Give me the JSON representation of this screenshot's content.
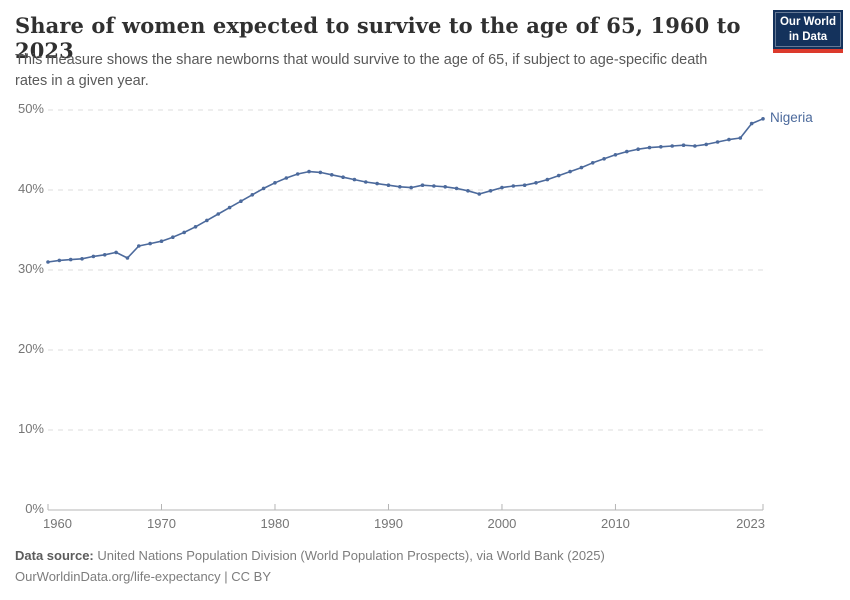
{
  "header": {
    "title": "Share of women expected to survive to the age of 65, 1960 to 2023",
    "subtitle": "This measure shows the share newborns that would survive to the age of 65, if subject to age-specific death rates in a given year.",
    "logo": {
      "line1": "Our World",
      "line2": "in Data"
    }
  },
  "colors": {
    "line": "#4C6A9C",
    "entity_label": "#4C6A9C",
    "logo_bg": "#14325C",
    "logo_red": "#DC3A2C",
    "gridline": "#dcdcdc",
    "axis": "#b5b5b5",
    "tick_text": "#767676"
  },
  "chart_data": {
    "type": "line",
    "title": "Share of women expected to survive to the age of 65, 1960 to 2023",
    "xlabel": "",
    "ylabel": "",
    "entity_label": "Nigeria",
    "ylim": [
      0,
      50
    ],
    "yticks": [
      0,
      10,
      20,
      30,
      40,
      50
    ],
    "ytick_suffix": "%",
    "xticks": [
      1960,
      1970,
      1980,
      1990,
      2000,
      2010,
      2023
    ],
    "grid": "horizontal-dashed",
    "legend_position": "end-of-line",
    "x": [
      1960,
      1961,
      1962,
      1963,
      1964,
      1965,
      1966,
      1967,
      1968,
      1969,
      1970,
      1971,
      1972,
      1973,
      1974,
      1975,
      1976,
      1977,
      1978,
      1979,
      1980,
      1981,
      1982,
      1983,
      1984,
      1985,
      1986,
      1987,
      1988,
      1989,
      1990,
      1991,
      1992,
      1993,
      1994,
      1995,
      1996,
      1997,
      1998,
      1999,
      2000,
      2001,
      2002,
      2003,
      2004,
      2005,
      2006,
      2007,
      2008,
      2009,
      2010,
      2011,
      2012,
      2013,
      2014,
      2015,
      2016,
      2017,
      2018,
      2019,
      2020,
      2021,
      2022,
      2023
    ],
    "series": [
      {
        "name": "Nigeria",
        "color": "#4C6A9C",
        "values": [
          31.0,
          31.2,
          31.3,
          31.4,
          31.7,
          31.9,
          32.2,
          31.5,
          33.0,
          33.3,
          33.6,
          34.1,
          34.7,
          35.4,
          36.2,
          37.0,
          37.8,
          38.6,
          39.4,
          40.2,
          40.9,
          41.5,
          42.0,
          42.3,
          42.2,
          41.9,
          41.6,
          41.3,
          41.0,
          40.8,
          40.6,
          40.4,
          40.3,
          40.6,
          40.5,
          40.4,
          40.2,
          39.9,
          39.5,
          39.9,
          40.3,
          40.5,
          40.6,
          40.9,
          41.3,
          41.8,
          42.3,
          42.8,
          43.4,
          43.9,
          44.4,
          44.8,
          45.1,
          45.3,
          45.4,
          45.5,
          45.6,
          45.5,
          45.7,
          46.0,
          46.3,
          46.5,
          48.3,
          48.9
        ]
      }
    ]
  },
  "footer": {
    "source_label": "Data source:",
    "source_text": " United Nations Population Division (World Population Prospects), via World Bank (2025)",
    "license_text": "OurWorldinData.org/life-expectancy | CC BY"
  }
}
